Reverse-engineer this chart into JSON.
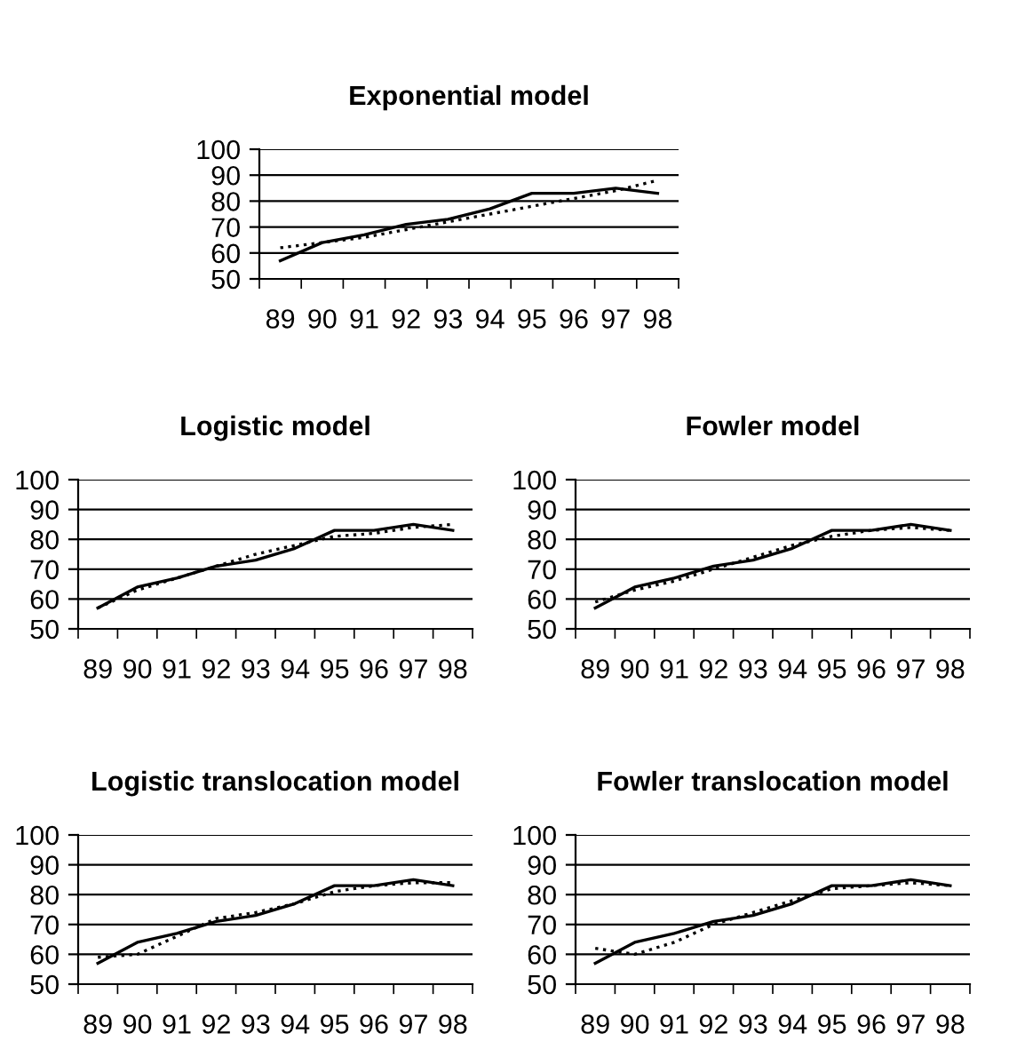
{
  "chart_data": [
    {
      "type": "line",
      "title": "Exponential model",
      "categories": [
        "89",
        "90",
        "91",
        "92",
        "93",
        "94",
        "95",
        "96",
        "97",
        "98"
      ],
      "ylim": [
        50,
        100
      ],
      "yticks": [
        50,
        60,
        70,
        80,
        90,
        100
      ],
      "grid": "y",
      "series": [
        {
          "color": "#000000",
          "line_style": "solid",
          "values": [
            57,
            64,
            67,
            71,
            73,
            77,
            83,
            83,
            85,
            83
          ]
        },
        {
          "color": "#000000",
          "line_style": "dotted",
          "values": [
            62,
            64,
            66,
            69,
            72,
            75,
            78,
            81,
            84,
            88
          ]
        }
      ]
    },
    {
      "type": "line",
      "title": "Logistic model",
      "categories": [
        "89",
        "90",
        "91",
        "92",
        "93",
        "94",
        "95",
        "96",
        "97",
        "98"
      ],
      "ylim": [
        50,
        100
      ],
      "yticks": [
        50,
        60,
        70,
        80,
        90,
        100
      ],
      "grid": "y",
      "series": [
        {
          "color": "#000000",
          "line_style": "solid",
          "values": [
            57,
            64,
            67,
            71,
            73,
            77,
            83,
            83,
            85,
            83
          ]
        },
        {
          "color": "#000000",
          "line_style": "dotted",
          "values": [
            57,
            63,
            67,
            71,
            75,
            78,
            81,
            82,
            84,
            85
          ]
        }
      ]
    },
    {
      "type": "line",
      "title": "Fowler model",
      "categories": [
        "89",
        "90",
        "91",
        "92",
        "93",
        "94",
        "95",
        "96",
        "97",
        "98"
      ],
      "ylim": [
        50,
        100
      ],
      "yticks": [
        50,
        60,
        70,
        80,
        90,
        100
      ],
      "grid": "y",
      "series": [
        {
          "color": "#000000",
          "line_style": "solid",
          "values": [
            57,
            64,
            67,
            71,
            73,
            77,
            83,
            83,
            85,
            83
          ]
        },
        {
          "color": "#000000",
          "line_style": "dotted",
          "values": [
            59,
            63,
            66,
            70,
            74,
            78,
            81,
            83,
            84,
            83
          ]
        }
      ]
    },
    {
      "type": "line",
      "title": "Logistic translocation model",
      "categories": [
        "89",
        "90",
        "91",
        "92",
        "93",
        "94",
        "95",
        "96",
        "97",
        "98"
      ],
      "ylim": [
        50,
        100
      ],
      "yticks": [
        50,
        60,
        70,
        80,
        90,
        100
      ],
      "grid": "y",
      "series": [
        {
          "color": "#000000",
          "line_style": "solid",
          "values": [
            57,
            64,
            67,
            71,
            73,
            77,
            83,
            83,
            85,
            83
          ]
        },
        {
          "color": "#000000",
          "line_style": "dotted",
          "values": [
            59,
            60,
            66,
            72,
            74,
            77,
            81,
            83,
            84,
            84
          ]
        }
      ]
    },
    {
      "type": "line",
      "title": "Fowler translocation model",
      "categories": [
        "89",
        "90",
        "91",
        "92",
        "93",
        "94",
        "95",
        "96",
        "97",
        "98"
      ],
      "ylim": [
        50,
        100
      ],
      "yticks": [
        50,
        60,
        70,
        80,
        90,
        100
      ],
      "grid": "y",
      "series": [
        {
          "color": "#000000",
          "line_style": "solid",
          "values": [
            57,
            64,
            67,
            71,
            73,
            77,
            83,
            83,
            85,
            83
          ]
        },
        {
          "color": "#000000",
          "line_style": "dotted",
          "values": [
            62,
            60,
            64,
            70,
            74,
            78,
            82,
            83,
            84,
            83
          ]
        }
      ]
    }
  ]
}
